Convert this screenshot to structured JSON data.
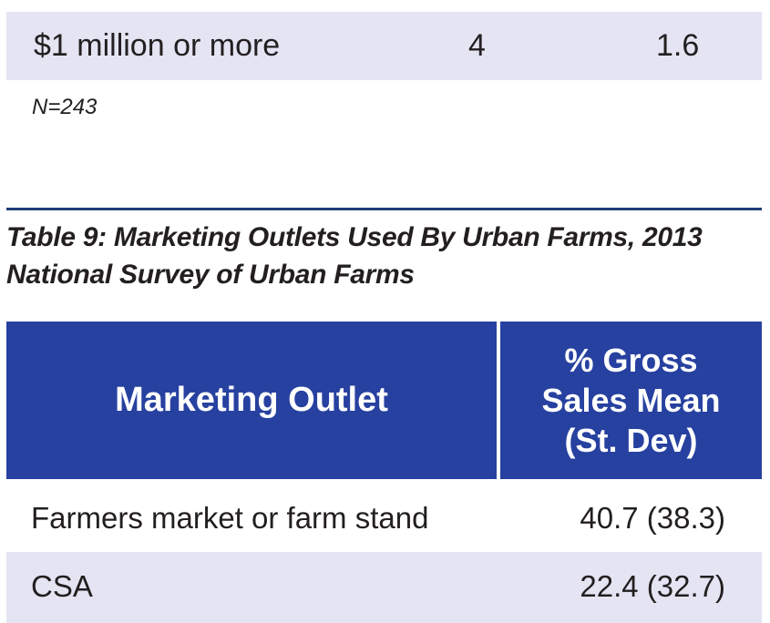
{
  "previous_table": {
    "last_row": {
      "label": "$1 million or more",
      "value1": "4",
      "value2": "1.6"
    },
    "note": "N=243"
  },
  "table9": {
    "caption": "Table 9: Marketing Outlets Used By Urban Farms, 2013 National Survey of Urban Farms",
    "headers": {
      "col1": "Marketing Outlet",
      "col2": "% Gross\nSales Mean\n(St. Dev)"
    },
    "rows": [
      {
        "outlet": "Farmers market or farm stand",
        "value": "40.7 (38.3)"
      },
      {
        "outlet": "CSA",
        "value": "22.4 (32.7)"
      }
    ]
  },
  "colors": {
    "header_bg": "#2741a0",
    "shaded_row_bg": "#e4e4f3",
    "rule": "#1f3e7a"
  }
}
